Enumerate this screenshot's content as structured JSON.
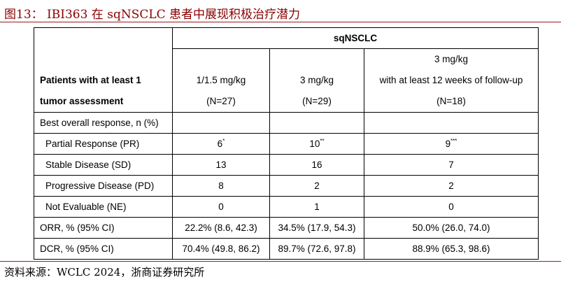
{
  "figure": {
    "title": "图13： IBI363 在 sqNSCLC 患者中展现积极治疗潜力",
    "source": "资料来源：WCLC 2024，浙商证券研究所"
  },
  "table": {
    "group_header": "sqNSCLC",
    "row_header_lines": [
      "Patients with at least 1",
      "tumor assessment"
    ],
    "columns": [
      {
        "lines": [
          "",
          "1/1.5 mg/kg",
          "(N=27)"
        ]
      },
      {
        "lines": [
          "",
          "3 mg/kg",
          "(N=29)"
        ]
      },
      {
        "lines": [
          "3 mg/kg",
          "with at least 12 weeks of follow-up",
          "(N=18)"
        ]
      }
    ],
    "section_label": "Best overall response, n (%)",
    "rows": [
      {
        "label": "Partial Response (PR)",
        "values": [
          "6",
          "10",
          "9"
        ],
        "sups": [
          "*",
          "**",
          "***"
        ]
      },
      {
        "label": "Stable Disease (SD)",
        "values": [
          "13",
          "16",
          "7"
        ]
      },
      {
        "label": "Progressive Disease (PD)",
        "values": [
          "8",
          "2",
          "2"
        ]
      },
      {
        "label": "Not Evaluable (NE)",
        "values": [
          "0",
          "1",
          "0"
        ]
      },
      {
        "label": "ORR, % (95% CI)",
        "values": [
          "22.2% (8.6, 42.3)",
          "34.5% (17.9, 54.3)",
          "50.0% (26.0, 74.0)"
        ]
      },
      {
        "label": "DCR, % (95% CI)",
        "values": [
          "70.4% (49.8, 86.2)",
          "89.7% (72.6, 97.8)",
          "88.9% (65.3, 98.6)"
        ]
      }
    ]
  }
}
